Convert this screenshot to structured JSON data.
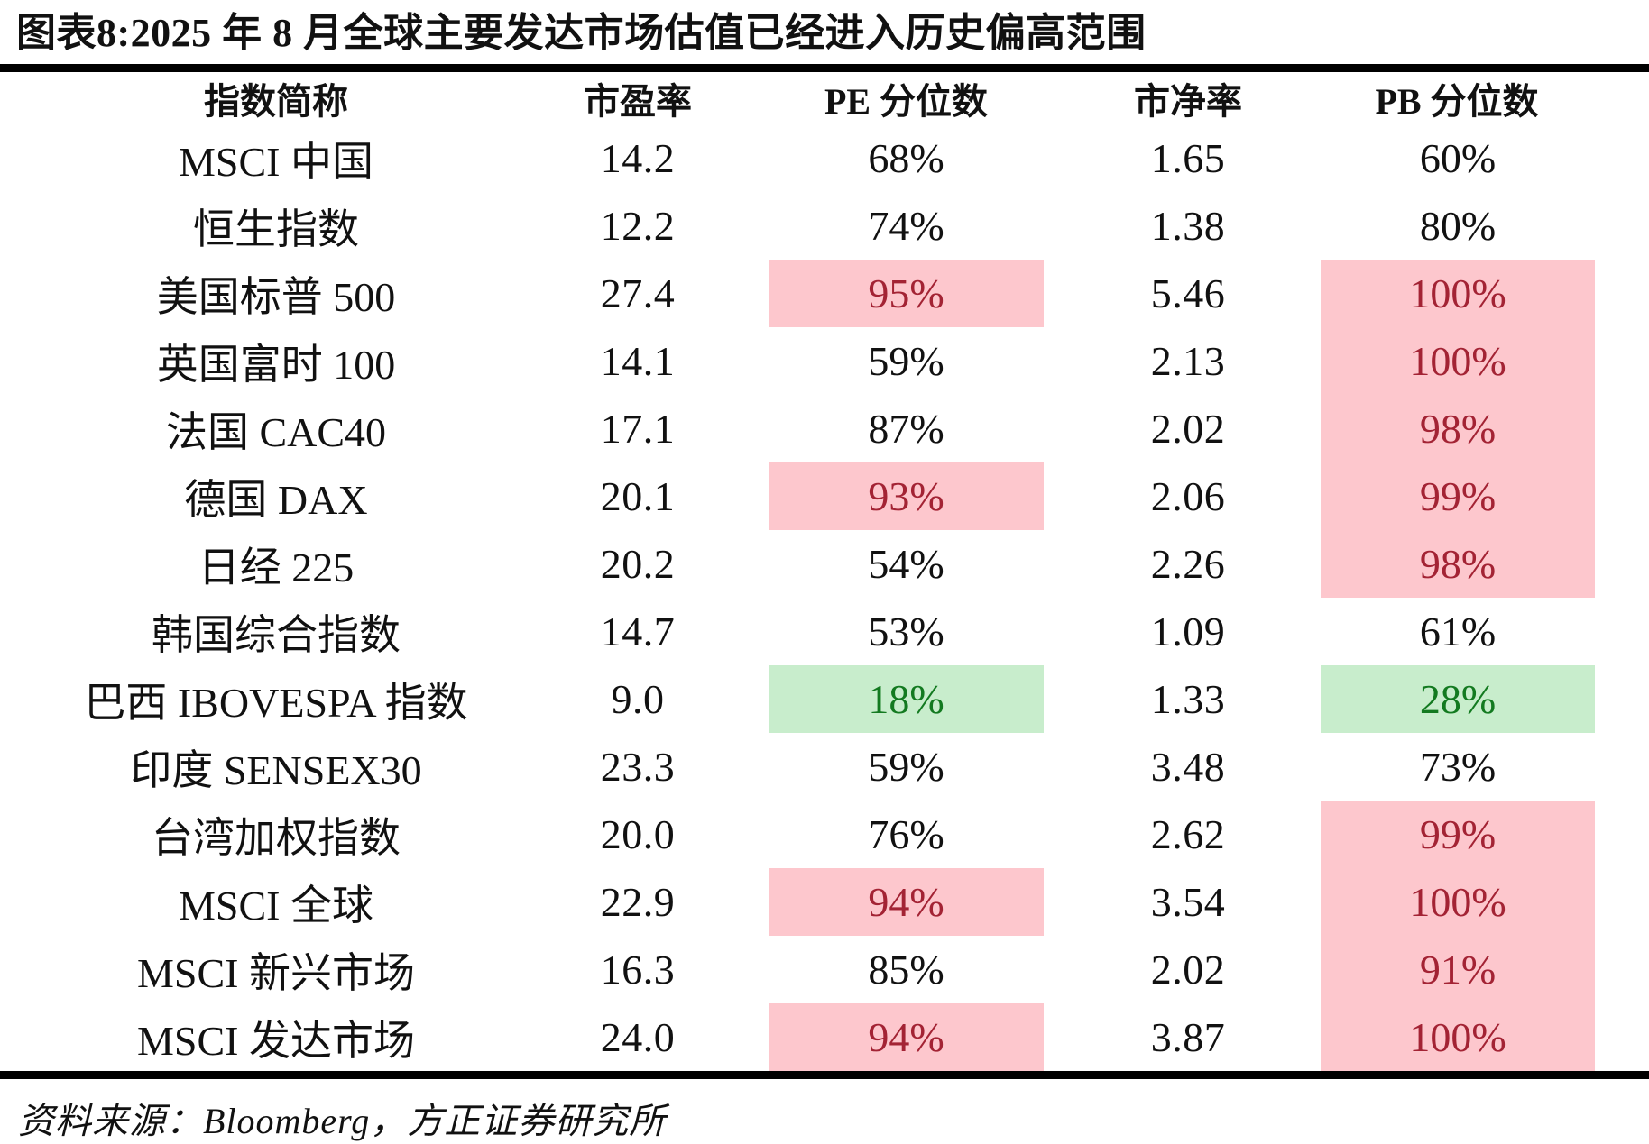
{
  "title": "图表8:2025 年 8 月全球主要发达市场估值已经进入历史偏高范围",
  "source": "资料来源：Bloomberg，方正证券研究所",
  "colors": {
    "high_bg": "#fdc7cd",
    "high_text": "#a32334",
    "low_bg": "#c8edcc",
    "low_text": "#137a20",
    "rule": "#000000"
  },
  "table": {
    "headers": [
      "指数简称",
      "市盈率",
      "PE 分位数",
      "市净率",
      "PB 分位数"
    ],
    "rows": [
      {
        "name": "MSCI 中国",
        "pe": "14.2",
        "pe_pct": "68%",
        "pe_hl": "none",
        "pb": "1.65",
        "pb_pct": "60%",
        "pb_hl": "none"
      },
      {
        "name": "恒生指数",
        "pe": "12.2",
        "pe_pct": "74%",
        "pe_hl": "none",
        "pb": "1.38",
        "pb_pct": "80%",
        "pb_hl": "none"
      },
      {
        "name": "美国标普 500",
        "pe": "27.4",
        "pe_pct": "95%",
        "pe_hl": "high",
        "pb": "5.46",
        "pb_pct": "100%",
        "pb_hl": "high"
      },
      {
        "name": "英国富时 100",
        "pe": "14.1",
        "pe_pct": "59%",
        "pe_hl": "none",
        "pb": "2.13",
        "pb_pct": "100%",
        "pb_hl": "high"
      },
      {
        "name": "法国 CAC40",
        "pe": "17.1",
        "pe_pct": "87%",
        "pe_hl": "none",
        "pb": "2.02",
        "pb_pct": "98%",
        "pb_hl": "high"
      },
      {
        "name": "德国 DAX",
        "pe": "20.1",
        "pe_pct": "93%",
        "pe_hl": "high",
        "pb": "2.06",
        "pb_pct": "99%",
        "pb_hl": "high"
      },
      {
        "name": "日经 225",
        "pe": "20.2",
        "pe_pct": "54%",
        "pe_hl": "none",
        "pb": "2.26",
        "pb_pct": "98%",
        "pb_hl": "high"
      },
      {
        "name": "韩国综合指数",
        "pe": "14.7",
        "pe_pct": "53%",
        "pe_hl": "none",
        "pb": "1.09",
        "pb_pct": "61%",
        "pb_hl": "none"
      },
      {
        "name": "巴西 IBOVESPA 指数",
        "pe": "9.0",
        "pe_pct": "18%",
        "pe_hl": "low",
        "pb": "1.33",
        "pb_pct": "28%",
        "pb_hl": "low"
      },
      {
        "name": "印度 SENSEX30",
        "pe": "23.3",
        "pe_pct": "59%",
        "pe_hl": "none",
        "pb": "3.48",
        "pb_pct": "73%",
        "pb_hl": "none"
      },
      {
        "name": "台湾加权指数",
        "pe": "20.0",
        "pe_pct": "76%",
        "pe_hl": "none",
        "pb": "2.62",
        "pb_pct": "99%",
        "pb_hl": "high"
      },
      {
        "name": "MSCI 全球",
        "pe": "22.9",
        "pe_pct": "94%",
        "pe_hl": "high",
        "pb": "3.54",
        "pb_pct": "100%",
        "pb_hl": "high"
      },
      {
        "name": "MSCI 新兴市场",
        "pe": "16.3",
        "pe_pct": "85%",
        "pe_hl": "none",
        "pb": "2.02",
        "pb_pct": "91%",
        "pb_hl": "high"
      },
      {
        "name": "MSCI 发达市场",
        "pe": "24.0",
        "pe_pct": "94%",
        "pe_hl": "high",
        "pb": "3.87",
        "pb_pct": "100%",
        "pb_hl": "high"
      }
    ]
  },
  "chart_data": {
    "type": "table",
    "title": "图表8:2025 年 8 月全球主要发达市场估值已经进入历史偏高范围",
    "columns": [
      "指数简称",
      "市盈率",
      "PE 分位数",
      "市净率",
      "PB 分位数"
    ],
    "rows": [
      [
        "MSCI 中国",
        14.2,
        "68%",
        1.65,
        "60%"
      ],
      [
        "恒生指数",
        12.2,
        "74%",
        1.38,
        "80%"
      ],
      [
        "美国标普 500",
        27.4,
        "95%",
        5.46,
        "100%"
      ],
      [
        "英国富时 100",
        14.1,
        "59%",
        2.13,
        "100%"
      ],
      [
        "法国 CAC40",
        17.1,
        "87%",
        2.02,
        "98%"
      ],
      [
        "德国 DAX",
        20.1,
        "93%",
        2.06,
        "99%"
      ],
      [
        "日经 225",
        20.2,
        "54%",
        2.26,
        "98%"
      ],
      [
        "韩国综合指数",
        14.7,
        "53%",
        1.09,
        "61%"
      ],
      [
        "巴西 IBOVESPA 指数",
        9.0,
        "18%",
        1.33,
        "28%"
      ],
      [
        "印度 SENSEX30",
        23.3,
        "59%",
        3.48,
        "73%"
      ],
      [
        "台湾加权指数",
        20.0,
        "76%",
        2.62,
        "99%"
      ],
      [
        "MSCI 全球",
        22.9,
        "94%",
        3.54,
        "100%"
      ],
      [
        "MSCI 新兴市场",
        16.3,
        "85%",
        2.02,
        "91%"
      ],
      [
        "MSCI 发达市场",
        24.0,
        "94%",
        3.87,
        "100%"
      ]
    ],
    "highlight_legend": "pink = historically high percentile, green = historically low percentile"
  }
}
